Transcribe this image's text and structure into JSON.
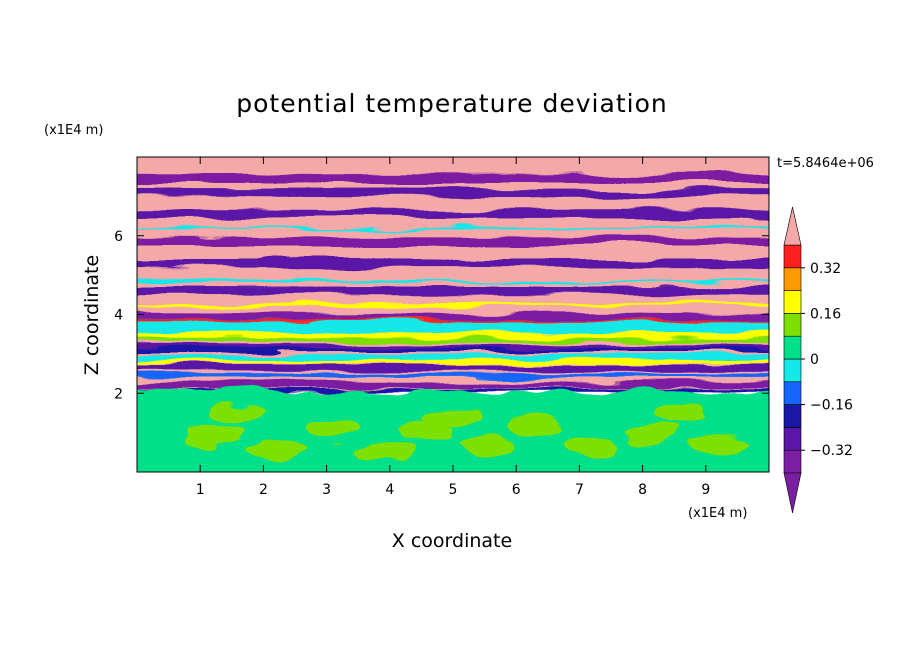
{
  "chart_data": {
    "type": "heatmap",
    "title": "potential temperature deviation",
    "xlabel": "X coordinate",
    "ylabel": "Z coordinate",
    "x_unit": "(x1E4 m)",
    "y_unit": "(x1E4 m)",
    "time_label": "t=5.8464e+06",
    "xlim": [
      0,
      10
    ],
    "ylim": [
      0,
      8
    ],
    "x_ticks": [
      1,
      2,
      3,
      4,
      5,
      6,
      7,
      8,
      9
    ],
    "y_ticks": [
      2,
      4,
      6
    ],
    "colorbar": {
      "levels": [
        -0.4,
        -0.32,
        -0.24,
        -0.16,
        -0.08,
        0,
        0.08,
        0.16,
        0.24,
        0.32,
        0.4
      ],
      "tick_values": [
        0.32,
        0.16,
        0,
        -0.16,
        -0.32
      ],
      "tick_labels": [
        "0.32",
        "0.16",
        "0",
        "−0.16",
        "−0.32"
      ],
      "colors": [
        "#7b1fa2",
        "#5a16a6",
        "#1a17a8",
        "#1565ff",
        "#14e8e8",
        "#00e08a",
        "#7ee000",
        "#ffff00",
        "#ff9900",
        "#ff2020",
        "#f4a8a8"
      ],
      "extend": "both"
    },
    "grid": false
  }
}
